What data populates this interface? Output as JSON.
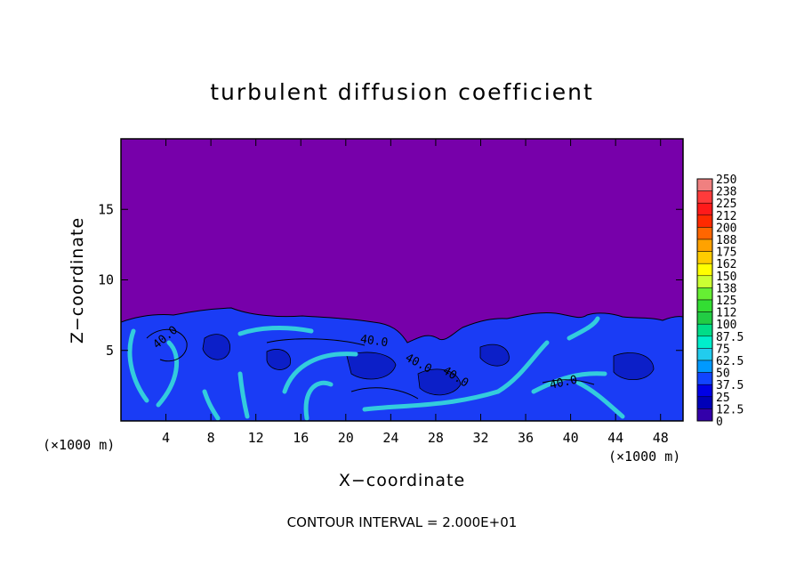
{
  "chart_data": {
    "type": "heatmap",
    "title": "turbulent diffusion coefficient",
    "xlabel": "X−coordinate",
    "ylabel": "Z−coordinate",
    "x_unit_left": "(×1000 m)",
    "x_unit_right": "(×1000 m)",
    "xlim": [
      0,
      50
    ],
    "ylim": [
      0,
      20
    ],
    "x_ticks": [
      "4",
      "8",
      "12",
      "16",
      "20",
      "24",
      "28",
      "32",
      "36",
      "40",
      "44",
      "48"
    ],
    "x_tick_values": [
      4,
      8,
      12,
      16,
      20,
      24,
      28,
      32,
      36,
      40,
      44,
      48
    ],
    "y_ticks": [
      "5",
      "10",
      "15"
    ],
    "y_tick_values": [
      5,
      10,
      15
    ],
    "colorbar_labels": [
      "250",
      "238",
      "225",
      "212",
      "200",
      "188",
      "175",
      "162",
      "150",
      "138",
      "125",
      "112",
      "100",
      "87.5",
      "75",
      "62.5",
      "50",
      "37.5",
      "25",
      "12.5",
      "0"
    ],
    "colorbar_colors": [
      "#f08080",
      "#ff3b3b",
      "#ff1a1a",
      "#ff2a00",
      "#ff6600",
      "#ffa200",
      "#ffcc00",
      "#ffff00",
      "#ccff33",
      "#66ee33",
      "#33dd33",
      "#22cc44",
      "#00dd88",
      "#00eecc",
      "#22ccee",
      "#0099ff",
      "#1144ff",
      "#0000e6",
      "#0000b8",
      "#3300aa",
      "#7700aa"
    ],
    "contour_labels": [
      "40.0",
      "40.0",
      "40.0",
      "40.0",
      "40.0"
    ],
    "footer": "CONTOUR INTERVAL = 2.000E+01",
    "background_color": "#7700aa",
    "turbulent_layer_top_approx": 7,
    "colors": {
      "low": "#7700aa",
      "mid": "#1a3cf5",
      "high": "#33ccdd"
    }
  }
}
